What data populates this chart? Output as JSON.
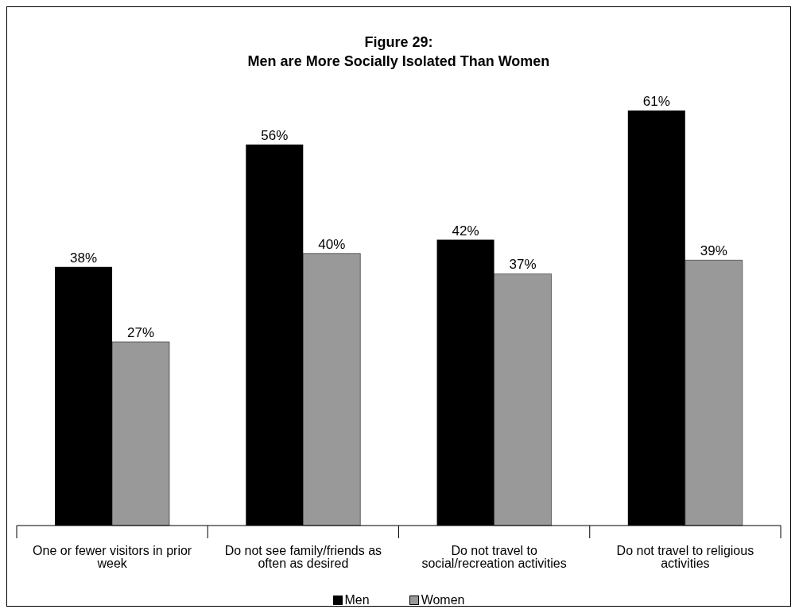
{
  "chart_data": {
    "type": "bar",
    "title": "Figure 29:\nMen are More Socially Isolated Than Women",
    "categories": [
      "One or fewer visitors in prior week",
      "Do not see family/friends as often as desired",
      "Do not travel to social/recreation activities",
      "Do not travel to religious activities"
    ],
    "series": [
      {
        "name": "Men",
        "color": "#000000",
        "values": [
          38,
          56,
          42,
          61
        ],
        "value_labels": [
          "38%",
          "56%",
          "42%",
          "61%"
        ]
      },
      {
        "name": "Women",
        "color": "#999999",
        "values": [
          27,
          40,
          37,
          39
        ],
        "value_labels": [
          "27%",
          "40%",
          "37%",
          "39%"
        ]
      }
    ],
    "legend": "bottom"
  }
}
